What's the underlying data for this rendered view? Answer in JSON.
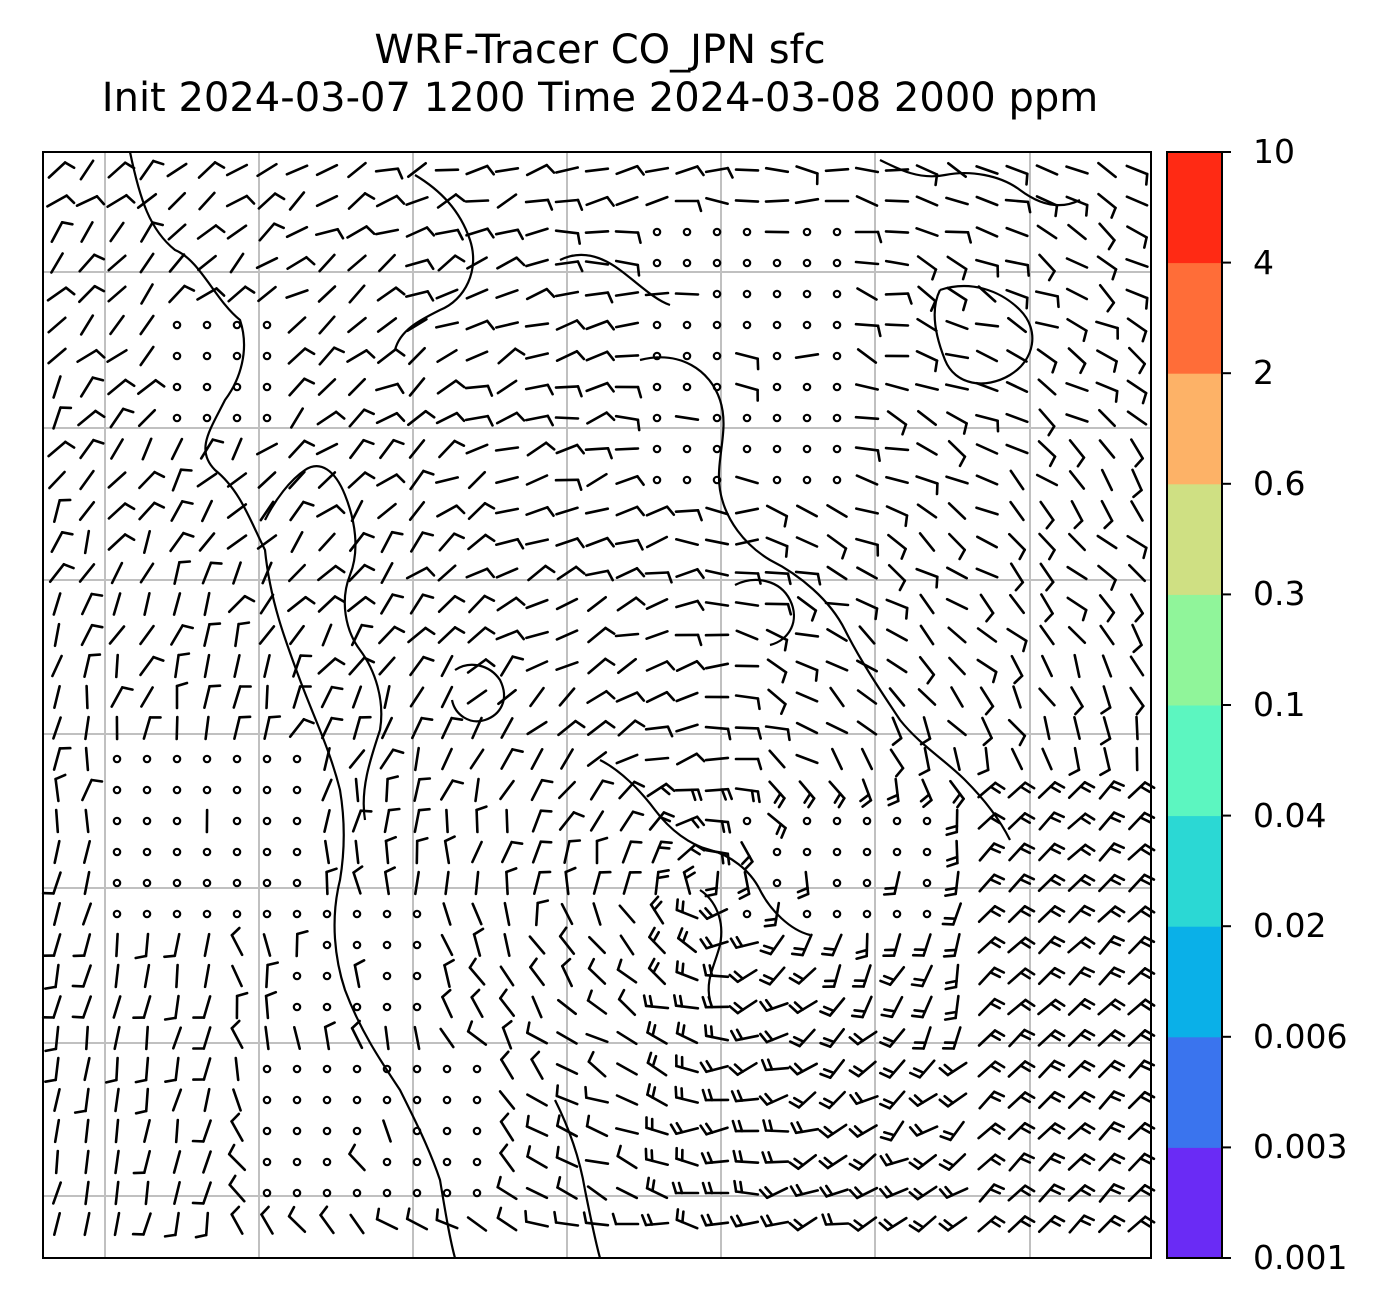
{
  "title": {
    "line1": "WRF-Tracer CO_JPN sfc",
    "line2": "Init 2024-03-07 1200 Time 2024-03-08 2000 ppm"
  },
  "colorbar": {
    "ticks": [
      "0.001",
      "0.003",
      "0.006",
      "0.02",
      "0.04",
      "0.1",
      "0.3",
      "0.6",
      "2",
      "4",
      "10"
    ],
    "colors": [
      "#6a2bf5",
      "#3a74ee",
      "#0ab0e8",
      "#2bd8d4",
      "#5cf6c0",
      "#90f59a",
      "#cfe083",
      "#fdb267",
      "#ff6d38",
      "#ff2a14"
    ]
  },
  "map": {
    "gridline_color": "#c0c0c0",
    "wind_barbs": "surface wind barbs",
    "coastline_color": "#000000"
  }
}
